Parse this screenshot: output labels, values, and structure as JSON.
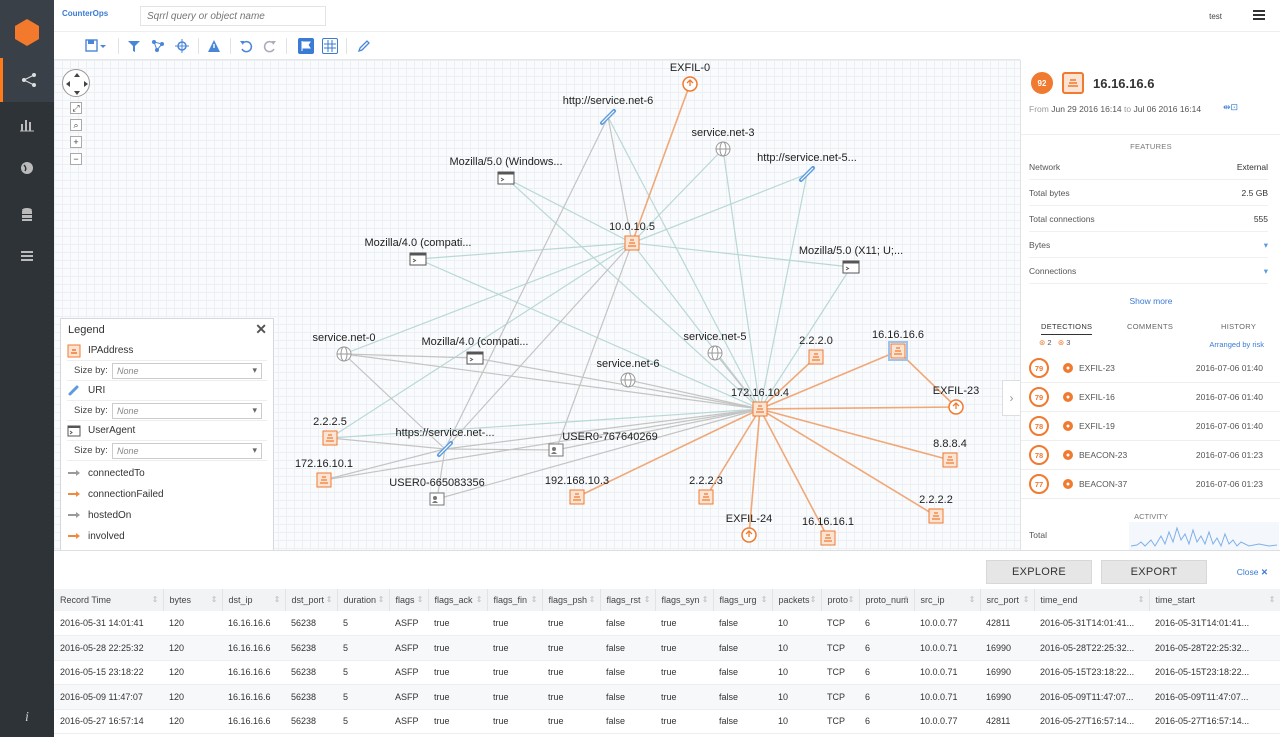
{
  "app": {
    "brand": "CounterOps",
    "user": "test"
  },
  "search": {
    "placeholder": "Sqrrl query or object name"
  },
  "graph": {
    "nodes": [
      {
        "id": "exfil0",
        "label": "EXFIL-0",
        "kind": "exfil"
      },
      {
        "id": "svc6",
        "label": "http://service.net-6",
        "kind": "uri"
      },
      {
        "id": "svc3",
        "label": "service.net-3",
        "kind": "domain"
      },
      {
        "id": "svc5u",
        "label": "http://service.net-5...",
        "kind": "uri"
      },
      {
        "id": "moz5w",
        "label": "Mozilla/5.0 (Windows...",
        "kind": "ua"
      },
      {
        "id": "ip10105",
        "label": "10.0.10.5",
        "kind": "ip"
      },
      {
        "id": "moz4a",
        "label": "Mozilla/4.0 (compati...",
        "kind": "ua"
      },
      {
        "id": "moz5x",
        "label": "Mozilla/5.0 (X11; U;...",
        "kind": "ua"
      },
      {
        "id": "svc0",
        "label": "service.net-0",
        "kind": "domain"
      },
      {
        "id": "moz4b",
        "label": "Mozilla/4.0 (compati...",
        "kind": "ua"
      },
      {
        "id": "svc5",
        "label": "service.net-5",
        "kind": "domain"
      },
      {
        "id": "ip2220",
        "label": "2.2.2.0",
        "kind": "ip"
      },
      {
        "id": "ip16166",
        "label": "16.16.16.6",
        "kind": "ip"
      },
      {
        "id": "svc6d",
        "label": "service.net-6",
        "kind": "domain"
      },
      {
        "id": "ip172104",
        "label": "172.16.10.4",
        "kind": "ip"
      },
      {
        "id": "exfil23",
        "label": "EXFIL-23",
        "kind": "exfil"
      },
      {
        "id": "ip2225",
        "label": "2.2.2.5",
        "kind": "ip"
      },
      {
        "id": "https",
        "label": "https://service.net-...",
        "kind": "uri"
      },
      {
        "id": "user76",
        "label": "USER0-767640269",
        "kind": "user"
      },
      {
        "id": "ip8888",
        "label": "8.8.8.4",
        "kind": "ip"
      },
      {
        "id": "ip172101",
        "label": "172.16.10.1",
        "kind": "ip"
      },
      {
        "id": "user66",
        "label": "USER0-665083356",
        "kind": "user"
      },
      {
        "id": "ip192",
        "label": "192.168.10.3",
        "kind": "ip"
      },
      {
        "id": "ip2223",
        "label": "2.2.2.3",
        "kind": "ip"
      },
      {
        "id": "ip2222",
        "label": "2.2.2.2",
        "kind": "ip"
      },
      {
        "id": "exfil24",
        "label": "EXFIL-24",
        "kind": "exfil"
      },
      {
        "id": "ip16161",
        "label": "16.16.16.1",
        "kind": "ip"
      }
    ]
  },
  "legend": {
    "title": "Legend",
    "size_by": "Size by:",
    "none": "None",
    "types": [
      "IPAddress",
      "URI",
      "UserAgent"
    ],
    "edges": [
      {
        "label": "connectedTo",
        "color": "#9a9a9a"
      },
      {
        "label": "connectionFailed",
        "color": "#f08a40"
      },
      {
        "label": "hostedOn",
        "color": "#9a9a9a"
      },
      {
        "label": "involved",
        "color": "#f08a40"
      }
    ]
  },
  "detail": {
    "score": "92",
    "title": "16.16.16.6",
    "range_from_label": "From",
    "range_from": "Jun 29 2016 16:14",
    "range_to_label": "to",
    "range_to": "Jul 06 2016 16:14",
    "features_header": "FEATURES",
    "features": [
      {
        "k": "Network",
        "v": "External"
      },
      {
        "k": "Total bytes",
        "v": "2.5 GB"
      },
      {
        "k": "Total connections",
        "v": "555"
      },
      {
        "k": "Bytes",
        "v": ""
      },
      {
        "k": "Connections",
        "v": ""
      }
    ],
    "show_more": "Show more",
    "tabs": [
      "DETECTIONS",
      "COMMENTS",
      "HISTORY"
    ],
    "det_count_a": "2",
    "det_count_b": "3",
    "arranged": "Arranged by risk",
    "detections": [
      {
        "score": "79",
        "name": "EXFIL-23",
        "time": "2016-07-06 01:40"
      },
      {
        "score": "79",
        "name": "EXFIL-16",
        "time": "2016-07-06 01:40"
      },
      {
        "score": "78",
        "name": "EXFIL-19",
        "time": "2016-07-06 01:40"
      },
      {
        "score": "78",
        "name": "BEACON-23",
        "time": "2016-07-06 01:23"
      },
      {
        "score": "77",
        "name": "BEACON-37",
        "time": "2016-07-06 01:23"
      }
    ],
    "activity_header": "ACTIVITY",
    "activity_total": "Total"
  },
  "bottom": {
    "explore": "EXPLORE",
    "export": "EXPORT",
    "close": "Close",
    "columns": [
      "Record Time",
      "bytes",
      "dst_ip",
      "dst_port",
      "duration",
      "flags",
      "flags_ack",
      "flags_fin",
      "flags_psh",
      "flags_rst",
      "flags_syn",
      "flags_urg",
      "packets",
      "proto",
      "proto_num",
      "src_ip",
      "src_port",
      "time_end",
      "time_start"
    ],
    "rows": [
      [
        "2016-05-31 14:01:41",
        "120",
        "16.16.16.6",
        "56238",
        "5",
        "ASFP",
        "true",
        "true",
        "true",
        "false",
        "true",
        "false",
        "10",
        "TCP",
        "6",
        "10.0.0.77",
        "42811",
        "2016-05-31T14:01:41...",
        "2016-05-31T14:01:41..."
      ],
      [
        "2016-05-28 22:25:32",
        "120",
        "16.16.16.6",
        "56238",
        "5",
        "ASFP",
        "true",
        "true",
        "true",
        "false",
        "true",
        "false",
        "10",
        "TCP",
        "6",
        "10.0.0.71",
        "16990",
        "2016-05-28T22:25:32...",
        "2016-05-28T22:25:32..."
      ],
      [
        "2016-05-15 23:18:22",
        "120",
        "16.16.16.6",
        "56238",
        "5",
        "ASFP",
        "true",
        "true",
        "true",
        "false",
        "true",
        "false",
        "10",
        "TCP",
        "6",
        "10.0.0.71",
        "16990",
        "2016-05-15T23:18:22...",
        "2016-05-15T23:18:22..."
      ],
      [
        "2016-05-09 11:47:07",
        "120",
        "16.16.16.6",
        "56238",
        "5",
        "ASFP",
        "true",
        "true",
        "true",
        "false",
        "true",
        "false",
        "10",
        "TCP",
        "6",
        "10.0.0.71",
        "16990",
        "2016-05-09T11:47:07...",
        "2016-05-09T11:47:07..."
      ],
      [
        "2016-05-27 16:57:14",
        "120",
        "16.16.16.6",
        "56238",
        "5",
        "ASFP",
        "true",
        "true",
        "true",
        "false",
        "true",
        "false",
        "10",
        "TCP",
        "6",
        "10.0.0.77",
        "42811",
        "2016-05-27T16:57:14...",
        "2016-05-27T16:57:14..."
      ]
    ]
  },
  "colors": {
    "accent": "#f07a30",
    "link": "#3a7bd5",
    "nav_bg": "#2e3338"
  }
}
